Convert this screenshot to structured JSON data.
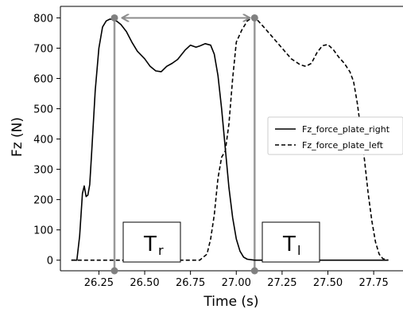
{
  "chart_data": {
    "type": "line",
    "xlabel": "Time (s)",
    "ylabel": "Fz (N)",
    "xlim": [
      26.04,
      27.91
    ],
    "ylim": [
      -35,
      838
    ],
    "xticks": [
      "26.25",
      "26.50",
      "26.75",
      "27.00",
      "27.25",
      "27.50",
      "27.75"
    ],
    "xtick_values": [
      26.25,
      26.5,
      26.75,
      27.0,
      27.25,
      27.5,
      27.75
    ],
    "yticks": [
      "0",
      "100",
      "200",
      "300",
      "400",
      "500",
      "600",
      "700",
      "800"
    ],
    "ytick_values": [
      0,
      100,
      200,
      300,
      400,
      500,
      600,
      700,
      800
    ],
    "grid": false,
    "legend_position": "right",
    "series": [
      {
        "name": "Fz_force_plate_right",
        "style": "solid",
        "color": "#000000",
        "x": [
          26.1,
          26.13,
          26.145,
          26.16,
          26.17,
          26.18,
          26.19,
          26.2,
          26.21,
          26.23,
          26.25,
          26.27,
          26.29,
          26.31,
          26.33,
          26.35,
          26.37,
          26.4,
          26.43,
          26.46,
          26.5,
          26.53,
          26.56,
          26.59,
          26.62,
          26.65,
          26.68,
          26.72,
          26.75,
          26.78,
          26.8,
          26.83,
          26.86,
          26.88,
          26.9,
          26.92,
          26.94,
          26.96,
          26.98,
          27.0,
          27.02,
          27.04,
          27.06,
          27.1,
          27.2,
          27.4,
          27.6,
          27.8,
          27.83
        ],
        "y": [
          0,
          0,
          80,
          220,
          245,
          210,
          215,
          250,
          350,
          560,
          700,
          770,
          790,
          796,
          795,
          788,
          778,
          755,
          720,
          690,
          665,
          640,
          625,
          622,
          640,
          650,
          663,
          693,
          710,
          703,
          707,
          715,
          710,
          680,
          610,
          500,
          370,
          240,
          140,
          70,
          30,
          10,
          3,
          0,
          0,
          0,
          0,
          0,
          0
        ]
      },
      {
        "name": "Fz_force_plate_left",
        "style": "dashed",
        "color": "#000000",
        "x": [
          26.1,
          26.8,
          26.84,
          26.86,
          26.88,
          26.9,
          26.92,
          26.94,
          26.96,
          26.98,
          27.0,
          27.03,
          27.06,
          27.08,
          27.1,
          27.12,
          27.15,
          27.2,
          27.25,
          27.3,
          27.35,
          27.38,
          27.41,
          27.44,
          27.47,
          27.5,
          27.53,
          27.56,
          27.59,
          27.62,
          27.64,
          27.66,
          27.68,
          27.7,
          27.72,
          27.74,
          27.76,
          27.78,
          27.8,
          27.83
        ],
        "y": [
          0,
          0,
          20,
          70,
          150,
          270,
          340,
          360,
          450,
          600,
          720,
          760,
          790,
          798,
          800,
          790,
          770,
          735,
          700,
          665,
          645,
          640,
          650,
          685,
          708,
          712,
          695,
          670,
          650,
          622,
          590,
          520,
          430,
          330,
          220,
          130,
          60,
          20,
          5,
          0
        ]
      }
    ],
    "annotations": {
      "vlines_x": [
        26.335,
        27.1
      ],
      "arrow_from_x": 26.38,
      "arrow_to_x": 27.07,
      "arrow_y": 800,
      "label_right": "T",
      "label_right_sub": "r",
      "label_left": "T",
      "label_left_sub": "l"
    }
  }
}
